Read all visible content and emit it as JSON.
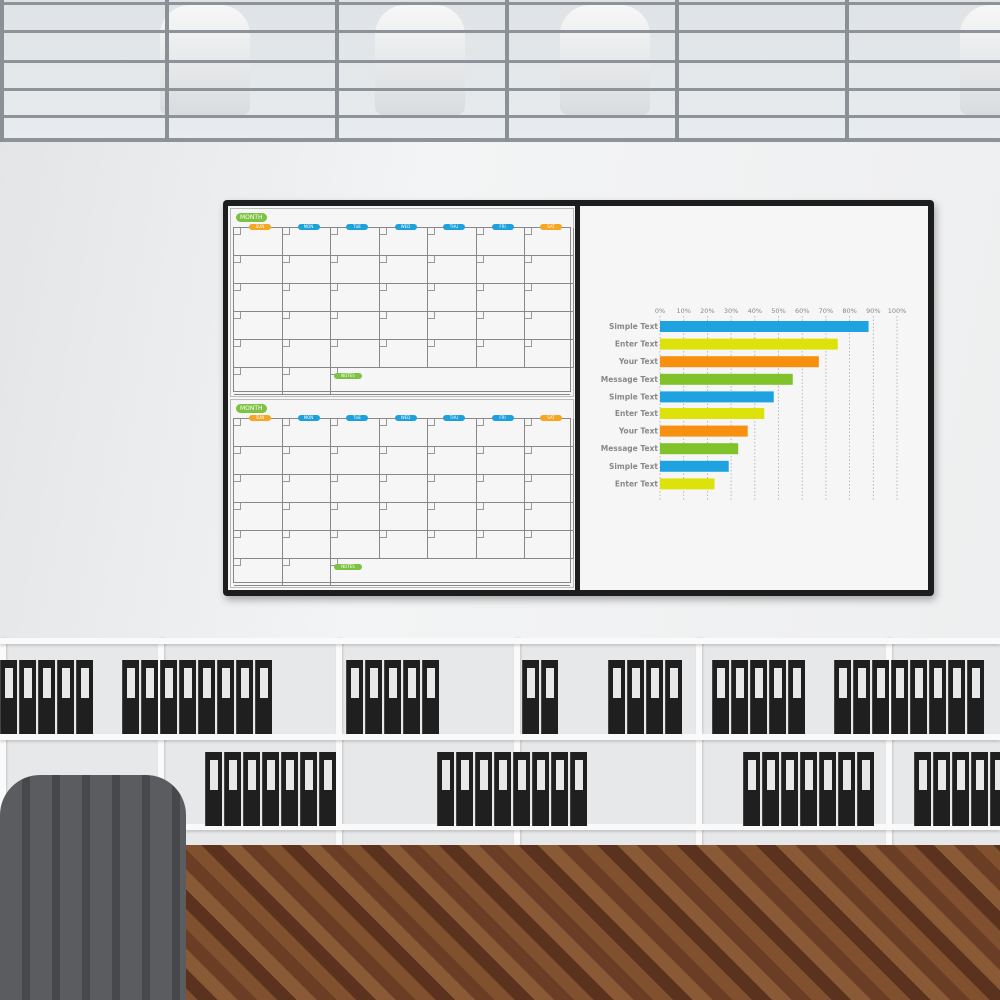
{
  "calendar": {
    "month_label": "MONTH",
    "notes_label": "NOTES",
    "days": [
      "SUN",
      "MON",
      "TUE",
      "WED",
      "THU",
      "FRI",
      "SAT"
    ],
    "weekday_color": "#1ea0dc",
    "weekend_color": "#f5a623",
    "accent": "#7dc242"
  },
  "chart_data": {
    "type": "bar",
    "orientation": "horizontal",
    "categories": [
      "Simple Text",
      "Enter Text",
      "Your Text",
      "Message Text",
      "Simple Text",
      "Enter Text",
      "Your Text",
      "Message Text",
      "Simple Text",
      "Enter Text"
    ],
    "values": [
      88,
      75,
      67,
      56,
      48,
      44,
      37,
      33,
      29,
      23
    ],
    "colors": [
      "#1fa3e0",
      "#dde20a",
      "#f7900e",
      "#7fc22a",
      "#1fa3e0",
      "#dde20a",
      "#f7900e",
      "#7fc22a",
      "#1fa3e0",
      "#dde20a"
    ],
    "xticks": [
      "0%",
      "10%",
      "20%",
      "30%",
      "40%",
      "50%",
      "60%",
      "70%",
      "80%",
      "90%",
      "100%"
    ],
    "xlim": [
      0,
      100
    ],
    "grid": true,
    "title": "",
    "xlabel": "",
    "ylabel": ""
  }
}
